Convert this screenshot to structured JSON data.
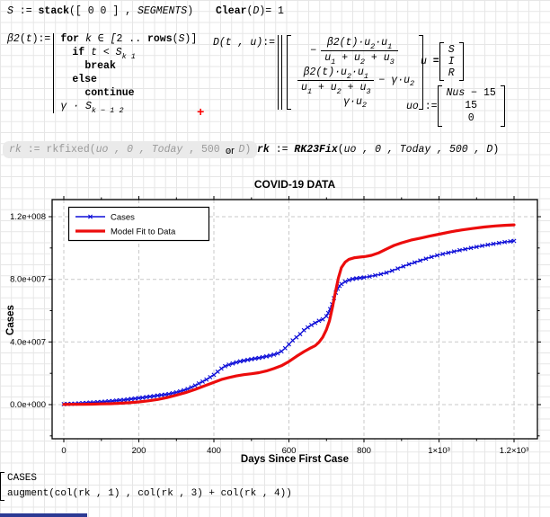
{
  "math": {
    "s_def": {
      "v": "S",
      "as": " := ",
      "fn": "stack",
      "o": "([",
      "m": " 0 0 ",
      "c": "] , ",
      "arg": "SEGMENTS",
      "e": ")"
    },
    "clear": {
      "fn": "Clear",
      "o": "(",
      "v": "D",
      "c": ")",
      "eq": "= ",
      "r": "1"
    },
    "beta": {
      "name": "β2",
      "o": "(",
      "t": "t",
      "c": "):=",
      "for_kw": "for ",
      "for_a": "k ∈ [",
      "for_n": "2 .. ",
      "for_fn": "rows",
      "for_b": "(",
      "for_v": "S",
      "for_c": ")]",
      "if_kw": "if ",
      "if_a": "t < ",
      "if_v": "S",
      "if_sub": "k 1",
      "break_kw": "break",
      "else_kw": "else",
      "cont_kw": "continue",
      "ret": "γ · S",
      "ret_sub": "k − 1 2"
    },
    "d_def": {
      "name": "D",
      "args": "(t , u)",
      "as": ":=",
      "neg": "−",
      "nu_a": "β2",
      "nu_b": "(t)·u",
      "nu_s2": "2",
      "nu_c": "·u",
      "nu_s1": "1",
      "de_a": "u",
      "de_s1": "1",
      "de_b": " + u",
      "de_s2": "2",
      "de_c": " + u",
      "de_s3": "3",
      "r2_t": "− γ·u",
      "r2_s": "2",
      "r3": "γ·u",
      "r3_s": "2"
    },
    "u_def": {
      "lhs": "u",
      "eq": " = ",
      "rows": [
        "S",
        "I",
        "R"
      ]
    },
    "uo_def": {
      "lhs": "uo",
      "as": " := ",
      "r0a": "Nus",
      "r0b": " − 15",
      "r1": "15",
      "r2": "0"
    },
    "cursor": "+",
    "rk1": {
      "lhs": "rk",
      "as": " := ",
      "fn": "rkfixed",
      "o": "(",
      "a1": "uo , 0 , ",
      "tod": "Today",
      "a2": " , 500 , ",
      "dv": "D",
      "c": ")"
    },
    "or_label": "or",
    "rk2": {
      "lhs": "rk",
      "as": " := ",
      "fn": "RK23Fix",
      "o": "(",
      "a1": "uo , 0 , ",
      "tod": "Today",
      "a2": " , 500 , ",
      "dv": "D",
      "c": ")"
    },
    "traces": {
      "r0": "CASES",
      "r1": "augment(col(rk , 1) , col(rk , 3) + col(rk , 4))"
    }
  },
  "chart_data": {
    "type": "line",
    "title": "COVID-19 DATA",
    "xlabel": "Days Since First Case",
    "ylabel": "Cases",
    "xlim": [
      -31,
      1262
    ],
    "ylim_millions": [
      -22,
      131
    ],
    "grid": true,
    "legend_position": "top-left",
    "x_ticks": [
      0,
      200,
      400,
      600,
      800,
      1000,
      1200
    ],
    "x_tick_labels": [
      "0",
      "200",
      "400",
      "600",
      "800",
      "1×10³",
      "1.2×10³"
    ],
    "x_minor_ticks": [
      100,
      300,
      500,
      700,
      900,
      1100
    ],
    "y_ticks_millions": [
      0,
      40,
      80,
      120
    ],
    "y_tick_labels": [
      "0.0e+000",
      "4.0e+007",
      "8.0e+007",
      "1.2e+008"
    ],
    "y_minor_ticks_millions": [
      -20,
      20,
      60,
      100
    ],
    "series": [
      {
        "name": "Cases",
        "color": "#0f0fd8",
        "marker": "x",
        "x": [
          0,
          10,
          20,
          30,
          40,
          50,
          60,
          70,
          80,
          90,
          100,
          110,
          120,
          130,
          140,
          150,
          160,
          170,
          180,
          190,
          200,
          210,
          220,
          230,
          240,
          250,
          260,
          270,
          280,
          290,
          300,
          310,
          320,
          330,
          340,
          350,
          360,
          370,
          380,
          390,
          400,
          410,
          420,
          430,
          440,
          450,
          460,
          470,
          480,
          490,
          500,
          510,
          520,
          530,
          540,
          550,
          560,
          570,
          580,
          590,
          600,
          610,
          620,
          630,
          640,
          650,
          660,
          670,
          680,
          690,
          700,
          705,
          710,
          715,
          720,
          725,
          730,
          735,
          740,
          750,
          760,
          770,
          780,
          790,
          800,
          815,
          830,
          845,
          860,
          875,
          890,
          905,
          920,
          935,
          950,
          965,
          980,
          995,
          1010,
          1025,
          1040,
          1055,
          1070,
          1085,
          1100,
          1115,
          1130,
          1145,
          1160,
          1175,
          1190,
          1200
        ],
        "y_millions": [
          0.3,
          0.4,
          0.5,
          0.6,
          0.8,
          0.9,
          1.1,
          1.3,
          1.4,
          1.6,
          1.7,
          1.9,
          2.1,
          2.3,
          2.6,
          2.8,
          3.0,
          3.3,
          3.6,
          3.9,
          4.2,
          4.5,
          4.8,
          5.1,
          5.4,
          5.8,
          6.1,
          6.4,
          6.8,
          7.3,
          7.8,
          8.5,
          9.2,
          10.0,
          11.0,
          12.2,
          13.5,
          14.7,
          16.0,
          17.5,
          19.0,
          21.0,
          23.0,
          24.5,
          25.5,
          26.3,
          27.0,
          27.6,
          28.1,
          28.6,
          29.0,
          29.4,
          29.8,
          30.3,
          30.8,
          31.3,
          31.9,
          32.7,
          34.0,
          36.0,
          38.5,
          41.0,
          43.0,
          45.0,
          47.5,
          49.3,
          50.8,
          52.2,
          53.5,
          54.5,
          56.5,
          58.5,
          61.0,
          64.0,
          68.0,
          71.5,
          74.0,
          75.8,
          77.0,
          78.5,
          79.5,
          80.2,
          80.6,
          80.9,
          81.2,
          81.8,
          82.5,
          83.3,
          84.3,
          85.5,
          86.9,
          88.3,
          89.6,
          90.8,
          92.0,
          93.2,
          94.3,
          95.3,
          96.2,
          97.0,
          97.8,
          98.6,
          99.3,
          100.0,
          100.7,
          101.4,
          102.0,
          102.6,
          103.2,
          103.8,
          104.2,
          104.5
        ]
      },
      {
        "name": "Model Fit to Data",
        "color": "#ec0c0c",
        "marker": null,
        "x": [
          0,
          25,
          50,
          75,
          100,
          125,
          150,
          175,
          200,
          225,
          250,
          275,
          300,
          325,
          350,
          375,
          400,
          420,
          440,
          460,
          480,
          500,
          520,
          540,
          560,
          580,
          600,
          620,
          640,
          655,
          670,
          680,
          690,
          700,
          708,
          716,
          724,
          732,
          740,
          750,
          760,
          775,
          790,
          805,
          820,
          840,
          860,
          880,
          900,
          925,
          950,
          975,
          1000,
          1030,
          1060,
          1090,
          1120,
          1150,
          1175,
          1200
        ],
        "y_millions": [
          0.1,
          0.15,
          0.2,
          0.3,
          0.45,
          0.6,
          0.85,
          1.2,
          1.7,
          2.4,
          3.3,
          4.5,
          6.0,
          7.7,
          9.7,
          12.0,
          14.2,
          16.0,
          17.3,
          18.3,
          19.1,
          19.7,
          20.4,
          21.5,
          23.0,
          24.8,
          27.5,
          30.8,
          33.8,
          35.8,
          37.6,
          39.8,
          43.0,
          48.0,
          53.5,
          62.0,
          72.0,
          81.0,
          87.5,
          91.0,
          92.8,
          93.8,
          94.2,
          94.6,
          95.3,
          97.0,
          99.4,
          101.6,
          103.3,
          105.0,
          106.3,
          107.6,
          108.8,
          110.3,
          111.5,
          112.5,
          113.4,
          114.1,
          114.5,
          114.8
        ]
      }
    ]
  }
}
